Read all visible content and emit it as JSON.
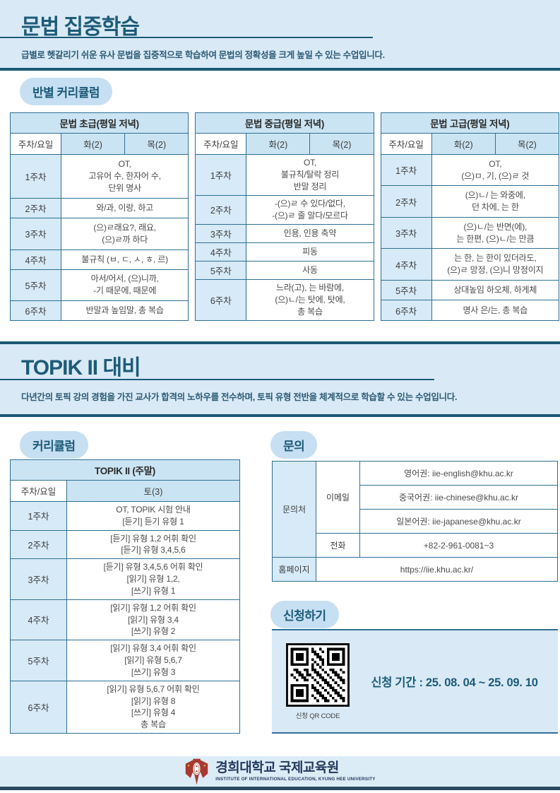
{
  "colors": {
    "accent": "#1d5b78",
    "bar": "#1a5974",
    "section_bg": "#d9eaf6",
    "badge_bg": "#c6dff2",
    "head_bg": "#cbe4f3",
    "week_bg": "#d7eaf7",
    "border": "#2e7096",
    "navy": "#223a5e",
    "footer_bar": "#2a4a61",
    "red": "#a63a30"
  },
  "section_grammar": {
    "title": "문법 집중학습",
    "subtitle": "급별로 헷갈리기 쉬운 유사 문법을 집중적으로 학습하여 문법의 정확성을 크게 높일 수 있는 수업입니다.",
    "badge": "반별 커리큘럼",
    "tables": [
      {
        "title": "문법 초급(평일 저녁)",
        "corner": "주차/요일",
        "days": [
          "화(2)",
          "목(2)"
        ],
        "rows": [
          {
            "week": "1주차",
            "lines": [
              "OT,",
              "고유어 수, 한자어 수,",
              "단위 명사"
            ]
          },
          {
            "week": "2주차",
            "lines": [
              "와/과, 이랑, 하고"
            ]
          },
          {
            "week": "3주차",
            "lines": [
              "(으)ㄹ래요?, 래요,",
              "(으)ㄹ까 하다"
            ]
          },
          {
            "week": "4주차",
            "lines": [
              "불규칙 (ㅂ, ㄷ, ㅅ, ㅎ, 르)"
            ]
          },
          {
            "week": "5주차",
            "lines": [
              "아서/어서, (으)니까,",
              "-기 때문에, 때문에"
            ]
          },
          {
            "week": "6주차",
            "lines": [
              "반말과 높임말, 총 복습"
            ]
          }
        ]
      },
      {
        "title": "문법 중급(평일 저녁)",
        "corner": "주차/요일",
        "days": [
          "화(2)",
          "목(2)"
        ],
        "rows": [
          {
            "week": "1주차",
            "lines": [
              "OT,",
              "불규칙/탈락 정리",
              "반말 정리"
            ]
          },
          {
            "week": "2주차",
            "lines": [
              "-(으)ㄹ 수 있다/없다,",
              "-(으)ㄹ 줄 알다/모르다"
            ]
          },
          {
            "week": "3주차",
            "lines": [
              "인용, 인용 축약"
            ]
          },
          {
            "week": "4주차",
            "lines": [
              "피동"
            ]
          },
          {
            "week": "5주차",
            "lines": [
              "사동"
            ]
          },
          {
            "week": "6주차",
            "lines": [
              "느라(고), 는 바람에,",
              "(으)ㄴ/는 탓에, 탓에,",
              "총 복습"
            ]
          }
        ]
      },
      {
        "title": "문법 고급(평일 저녁)",
        "corner": "주차/요일",
        "days": [
          "화(2)",
          "목(2)"
        ],
        "rows": [
          {
            "week": "1주차",
            "lines": [
              "OT,",
              "(으)ㅁ, 기, (으)ㄹ 것"
            ]
          },
          {
            "week": "2주차",
            "lines": [
              "(으)ㄴ/ 는 와중에,",
              "던 차에, 는 한"
            ]
          },
          {
            "week": "3주차",
            "lines": [
              "(으)ㄴ/는 반면(에),",
              "는 한편, (으)ㄴ/는 만큼"
            ]
          },
          {
            "week": "4주차",
            "lines": [
              "는 한, 는 한이 있더라도,",
              "(으)ㄹ 망정, (으)니 망정이지"
            ]
          },
          {
            "week": "5주차",
            "lines": [
              "상대높임 하오체, 하게체"
            ]
          },
          {
            "week": "6주차",
            "lines": [
              "명사 은/는, 총 복습"
            ]
          }
        ]
      }
    ]
  },
  "section_topik": {
    "title": "TOPIK II 대비",
    "subtitle": "다년간의 토픽 강의 경험을 가진 교사가 합격의 노하우를 전수하며, 토픽 유형 전반을 체계적으로 학습할 수 있는 수업입니다.",
    "curriculum_badge": "커리큘럼",
    "table": {
      "title": "TOPIK II (주말)",
      "corner": "주차/요일",
      "days": [
        "토(3)"
      ],
      "rows": [
        {
          "week": "1주차",
          "lines": [
            "OT, TOPIK 시험 안내",
            "[듣기] 듣기 유형 1"
          ]
        },
        {
          "week": "2주차",
          "lines": [
            "[듣기] 유형 1,2 어휘 확인",
            "[듣기] 유형 3,4,5,6"
          ]
        },
        {
          "week": "3주차",
          "lines": [
            "[듣기] 유형 3,4,5,6 어휘 확인",
            "[읽기] 유형 1,2,",
            "[쓰기] 유형 1"
          ]
        },
        {
          "week": "4주차",
          "lines": [
            "[읽기] 유형 1,2 어휘 확인",
            "[읽기] 유형 3,4",
            "[쓰기] 유형 2"
          ]
        },
        {
          "week": "5주차",
          "lines": [
            "[읽기] 유형 3,4 어휘 확인",
            "[읽기] 유형 5,6,7",
            "[쓰기] 유형 3"
          ]
        },
        {
          "week": "6주차",
          "lines": [
            "[읽기] 유형 5,6,7 어휘 확인",
            "[읽기] 유형 8",
            "[쓰기] 유형 4",
            "총 복습"
          ]
        }
      ]
    },
    "inquiry": {
      "badge": "문의",
      "contact_label": "문의처",
      "email_label": "이메일",
      "emails": [
        "영어권: iie-english@khu.ac.kr",
        "중국어권: iie-chinese@khu.ac.kr",
        "일본어권: iie-japanese@khu.ac.kr"
      ],
      "phone_label": "전화",
      "phone": "+82-2-961-0081~3",
      "homepage_label": "홈페이지",
      "homepage": "https://iie.khu.ac.kr/"
    },
    "apply": {
      "badge": "신청하기",
      "qr_caption": "신청 QR CODE",
      "period": "신청 기간 : 25. 08. 04 ~ 25. 09. 10"
    }
  },
  "footer": {
    "org": "경희대학교 국제교육원",
    "org_en": "INSTITUTE OF INTERNATIONAL EDUCATION, KYUNG HEE UNIVERSITY"
  }
}
